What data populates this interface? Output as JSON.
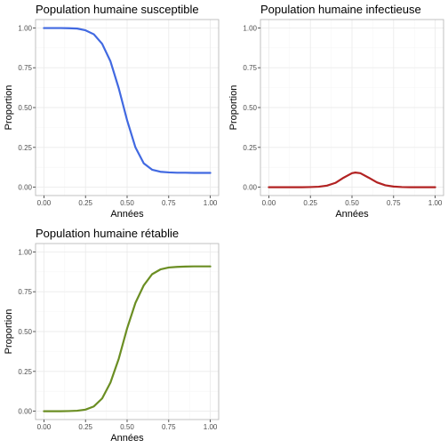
{
  "chart_data": [
    {
      "type": "line",
      "title": "Population humaine susceptible",
      "xlabel": "Années",
      "ylabel": "Proportion",
      "xlim": [
        0,
        1
      ],
      "ylim": [
        0,
        1
      ],
      "x_ticks": [
        "0.00",
        "0.25",
        "0.50",
        "0.75",
        "1.00"
      ],
      "y_ticks": [
        "0.00",
        "0.25",
        "0.50",
        "0.75",
        "1.00"
      ],
      "grid": true,
      "color": "#4169e1",
      "series": [
        {
          "x": [
            0.0,
            0.05,
            0.1,
            0.15,
            0.2,
            0.25,
            0.3,
            0.35,
            0.4,
            0.45,
            0.5,
            0.55,
            0.6,
            0.65,
            0.7,
            0.75,
            0.8,
            0.85,
            0.9,
            0.95,
            1.0
          ],
          "y": [
            0.999,
            0.999,
            0.999,
            0.998,
            0.996,
            0.985,
            0.96,
            0.9,
            0.79,
            0.62,
            0.42,
            0.25,
            0.15,
            0.11,
            0.097,
            0.093,
            0.091,
            0.091,
            0.09,
            0.09,
            0.09
          ]
        }
      ]
    },
    {
      "type": "line",
      "title": "Population humaine infectieuse",
      "xlabel": "Années",
      "ylabel": "Proportion",
      "xlim": [
        0,
        1
      ],
      "ylim": [
        0,
        1
      ],
      "x_ticks": [
        "0.00",
        "0.25",
        "0.50",
        "0.75",
        "1.00"
      ],
      "y_ticks": [
        "0.00",
        "0.25",
        "0.50",
        "0.75",
        "1.00"
      ],
      "grid": true,
      "color": "#b22222",
      "series": [
        {
          "x": [
            0.0,
            0.05,
            0.1,
            0.15,
            0.2,
            0.25,
            0.3,
            0.35,
            0.4,
            0.45,
            0.5,
            0.52,
            0.55,
            0.6,
            0.65,
            0.7,
            0.75,
            0.8,
            0.85,
            0.9,
            0.95,
            1.0
          ],
          "y": [
            0.0,
            0.0,
            0.0,
            0.0,
            0.0,
            0.001,
            0.003,
            0.01,
            0.027,
            0.06,
            0.088,
            0.092,
            0.088,
            0.06,
            0.03,
            0.012,
            0.004,
            0.001,
            0.0,
            0.0,
            0.0,
            0.0
          ]
        }
      ]
    },
    {
      "type": "line",
      "title": "Population humaine rétablie",
      "xlabel": "Années",
      "ylabel": "Proportion",
      "xlim": [
        0,
        1
      ],
      "ylim": [
        0,
        1
      ],
      "x_ticks": [
        "0.00",
        "0.25",
        "0.50",
        "0.75",
        "1.00"
      ],
      "y_ticks": [
        "0.00",
        "0.25",
        "0.50",
        "0.75",
        "1.00"
      ],
      "grid": true,
      "color": "#6b8e23",
      "series": [
        {
          "x": [
            0.0,
            0.05,
            0.1,
            0.15,
            0.2,
            0.25,
            0.3,
            0.35,
            0.4,
            0.45,
            0.5,
            0.55,
            0.6,
            0.65,
            0.7,
            0.75,
            0.8,
            0.85,
            0.9,
            0.95,
            1.0
          ],
          "y": [
            0.0,
            0.0,
            0.0,
            0.001,
            0.003,
            0.01,
            0.03,
            0.08,
            0.18,
            0.33,
            0.52,
            0.68,
            0.79,
            0.86,
            0.89,
            0.902,
            0.906,
            0.908,
            0.909,
            0.909,
            0.909
          ]
        }
      ]
    }
  ]
}
